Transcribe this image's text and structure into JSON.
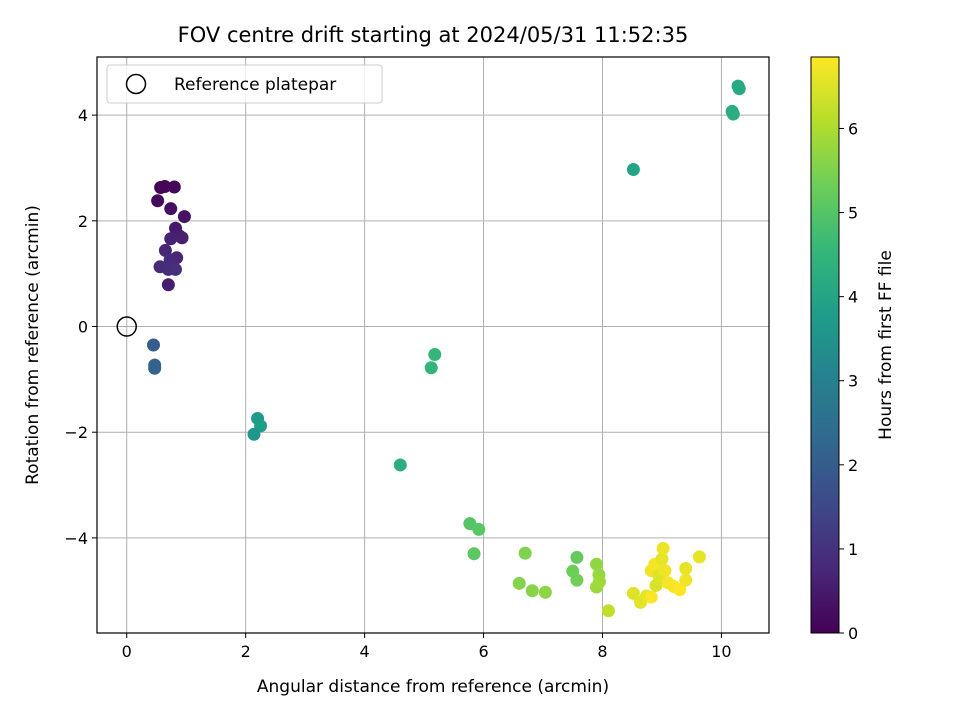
{
  "chart_data": {
    "type": "scatter",
    "title": "FOV centre drift starting at 2024/05/31 11:52:35",
    "xlabel": "Angular distance from reference (arcmin)",
    "ylabel": "Rotation from reference (arcmin)",
    "xlim": [
      -0.5,
      10.8
    ],
    "ylim": [
      -5.8,
      5.1
    ],
    "xticks": [
      0,
      2,
      4,
      6,
      8,
      10
    ],
    "yticks": [
      -4,
      -2,
      0,
      2,
      4
    ],
    "grid": true,
    "legend": {
      "position": "top-left",
      "entries": [
        "Reference platepar"
      ]
    },
    "reference_point": {
      "x": 0,
      "y": 0
    },
    "colorbar": {
      "label": "Hours from first FF file",
      "min": 0,
      "max": 6.85,
      "ticks": [
        0,
        1,
        2,
        3,
        4,
        5,
        6
      ],
      "colormap": [
        "#440154",
        "#482878",
        "#3e4989",
        "#31688e",
        "#26828e",
        "#1f9e89",
        "#35b779",
        "#6ece58",
        "#b5de2b",
        "#fde725"
      ]
    },
    "points": [
      {
        "x": 0.57,
        "y": 2.63,
        "t": 0.05
      },
      {
        "x": 0.64,
        "y": 2.65,
        "t": 0.1
      },
      {
        "x": 0.8,
        "y": 2.64,
        "t": 0.15
      },
      {
        "x": 0.52,
        "y": 2.38,
        "t": 0.2
      },
      {
        "x": 0.74,
        "y": 2.23,
        "t": 0.3
      },
      {
        "x": 0.97,
        "y": 2.08,
        "t": 0.35
      },
      {
        "x": 0.82,
        "y": 1.86,
        "t": 0.45
      },
      {
        "x": 0.88,
        "y": 1.72,
        "t": 0.55
      },
      {
        "x": 0.93,
        "y": 1.68,
        "t": 0.6
      },
      {
        "x": 0.74,
        "y": 1.66,
        "t": 0.65
      },
      {
        "x": 0.65,
        "y": 1.44,
        "t": 0.7
      },
      {
        "x": 0.84,
        "y": 1.3,
        "t": 0.75
      },
      {
        "x": 0.73,
        "y": 1.26,
        "t": 0.8
      },
      {
        "x": 0.56,
        "y": 1.13,
        "t": 0.85
      },
      {
        "x": 0.7,
        "y": 1.08,
        "t": 0.9
      },
      {
        "x": 0.82,
        "y": 1.08,
        "t": 0.95
      },
      {
        "x": 0.7,
        "y": 0.79,
        "t": 0.55
      },
      {
        "x": 0.45,
        "y": -0.35,
        "t": 2.0
      },
      {
        "x": 0.47,
        "y": -0.73,
        "t": 2.1
      },
      {
        "x": 0.47,
        "y": -0.79,
        "t": 2.15
      },
      {
        "x": 2.2,
        "y": -1.74,
        "t": 3.7
      },
      {
        "x": 2.25,
        "y": -1.88,
        "t": 3.8
      },
      {
        "x": 2.14,
        "y": -2.04,
        "t": 3.6
      },
      {
        "x": 4.6,
        "y": -2.62,
        "t": 4.3
      },
      {
        "x": 5.12,
        "y": -0.78,
        "t": 4.5
      },
      {
        "x": 5.18,
        "y": -0.53,
        "t": 4.55
      },
      {
        "x": 8.52,
        "y": 2.97,
        "t": 4.0
      },
      {
        "x": 10.18,
        "y": 4.07,
        "t": 4.2
      },
      {
        "x": 10.2,
        "y": 4.02,
        "t": 4.25
      },
      {
        "x": 10.28,
        "y": 4.55,
        "t": 4.1
      },
      {
        "x": 10.3,
        "y": 4.5,
        "t": 4.15
      },
      {
        "x": 5.77,
        "y": -3.73,
        "t": 5.0
      },
      {
        "x": 5.92,
        "y": -3.84,
        "t": 5.05
      },
      {
        "x": 5.84,
        "y": -4.3,
        "t": 5.1
      },
      {
        "x": 6.7,
        "y": -4.29,
        "t": 5.5
      },
      {
        "x": 6.6,
        "y": -4.86,
        "t": 5.55
      },
      {
        "x": 6.82,
        "y": -5.0,
        "t": 5.6
      },
      {
        "x": 7.04,
        "y": -5.03,
        "t": 5.65
      },
      {
        "x": 7.57,
        "y": -4.37,
        "t": 5.2
      },
      {
        "x": 7.5,
        "y": -4.63,
        "t": 5.3
      },
      {
        "x": 7.57,
        "y": -4.8,
        "t": 5.35
      },
      {
        "x": 7.9,
        "y": -4.5,
        "t": 5.7
      },
      {
        "x": 7.94,
        "y": -4.7,
        "t": 5.75
      },
      {
        "x": 7.9,
        "y": -4.93,
        "t": 5.8
      },
      {
        "x": 7.95,
        "y": -4.83,
        "t": 5.85
      },
      {
        "x": 8.1,
        "y": -5.38,
        "t": 6.2
      },
      {
        "x": 8.52,
        "y": -5.05,
        "t": 6.5
      },
      {
        "x": 8.64,
        "y": -5.22,
        "t": 6.55
      },
      {
        "x": 8.74,
        "y": -5.1,
        "t": 6.6
      },
      {
        "x": 8.82,
        "y": -4.62,
        "t": 6.7
      },
      {
        "x": 8.88,
        "y": -4.5,
        "t": 6.75
      },
      {
        "x": 8.82,
        "y": -5.12,
        "t": 6.8
      },
      {
        "x": 8.9,
        "y": -4.9,
        "t": 6.45
      },
      {
        "x": 8.95,
        "y": -4.72,
        "t": 6.5
      },
      {
        "x": 9.0,
        "y": -4.4,
        "t": 6.6
      },
      {
        "x": 9.02,
        "y": -4.2,
        "t": 6.65
      },
      {
        "x": 9.05,
        "y": -4.62,
        "t": 6.7
      },
      {
        "x": 9.1,
        "y": -4.85,
        "t": 6.75
      },
      {
        "x": 9.2,
        "y": -4.92,
        "t": 6.8
      },
      {
        "x": 9.3,
        "y": -4.98,
        "t": 6.85
      },
      {
        "x": 9.4,
        "y": -4.58,
        "t": 6.6
      },
      {
        "x": 9.4,
        "y": -4.8,
        "t": 6.7
      },
      {
        "x": 9.63,
        "y": -4.36,
        "t": 6.6
      }
    ]
  }
}
